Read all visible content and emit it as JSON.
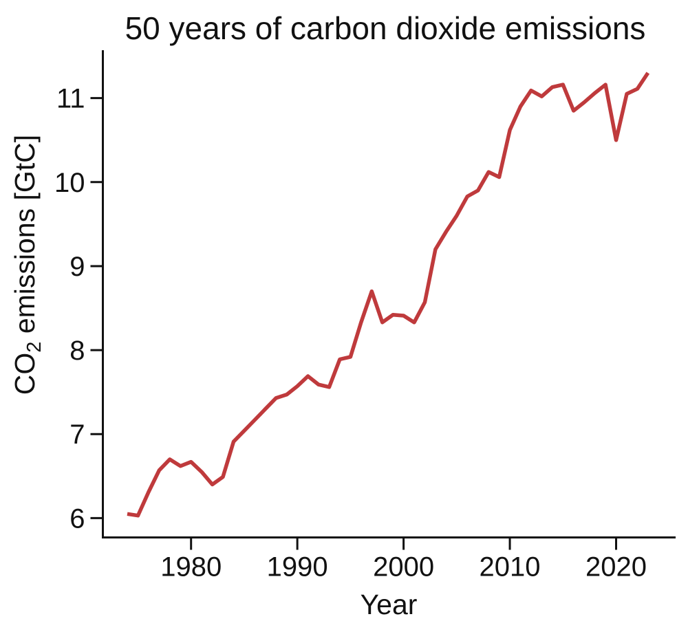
{
  "chart_data": {
    "type": "line",
    "title": "50 years of carbon dioxide emissions",
    "xlabel": "Year",
    "ylabel": "CO₂ emissions [GtC]",
    "ylabel_parts": {
      "pre": "CO",
      "sub": "2",
      "post": " emissions [GtC]"
    },
    "xlim": [
      1971.7,
      2025.6
    ],
    "ylim": [
      5.77,
      11.57
    ],
    "xticks": [
      1980,
      1990,
      2000,
      2010,
      2020
    ],
    "yticks": [
      6,
      7,
      8,
      9,
      10,
      11
    ],
    "grid": false,
    "legend": null,
    "x": [
      1974,
      1975,
      1976,
      1977,
      1978,
      1979,
      1980,
      1981,
      1982,
      1983,
      1984,
      1985,
      1986,
      1987,
      1988,
      1989,
      1990,
      1991,
      1992,
      1993,
      1994,
      1995,
      1996,
      1997,
      1998,
      1999,
      2000,
      2001,
      2002,
      2003,
      2004,
      2005,
      2006,
      2007,
      2008,
      2009,
      2010,
      2011,
      2012,
      2013,
      2014,
      2015,
      2016,
      2017,
      2018,
      2019,
      2020,
      2021,
      2022,
      2023
    ],
    "series": [
      {
        "name": "CO2 emissions",
        "color": "#bf3a3c",
        "values": [
          6.05,
          6.03,
          6.31,
          6.57,
          6.7,
          6.62,
          6.67,
          6.55,
          6.4,
          6.49,
          6.91,
          7.04,
          7.17,
          7.3,
          7.43,
          7.47,
          7.57,
          7.69,
          7.59,
          7.56,
          7.89,
          7.92,
          8.33,
          8.7,
          8.33,
          8.42,
          8.41,
          8.33,
          8.57,
          9.2,
          9.41,
          9.6,
          9.83,
          9.9,
          10.12,
          10.06,
          10.62,
          10.9,
          11.09,
          11.02,
          11.13,
          11.16,
          10.85,
          10.95,
          11.06,
          11.16,
          10.5,
          11.05,
          11.11,
          11.3
        ]
      }
    ]
  },
  "colors": {
    "line": "#bf3a3c",
    "axis": "#111111",
    "text": "#111111",
    "background": "#ffffff"
  }
}
